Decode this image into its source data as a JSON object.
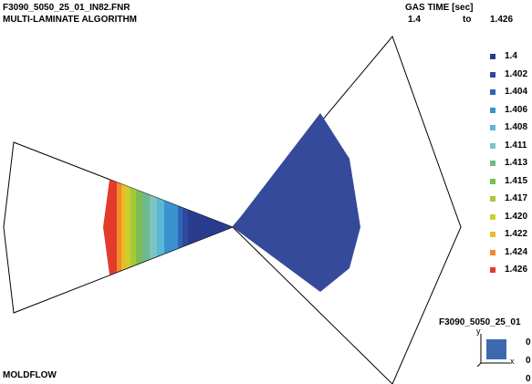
{
  "header": {
    "file_name": "F3090_5050_25_01_IN82.FNR",
    "algorithm": "MULTI-LAMINATE ALGORITHM",
    "result_title": "GAS TIME [sec]",
    "range_from": "1.4",
    "range_to_word": "to",
    "range_to": "1.426"
  },
  "legend": {
    "entries": [
      {
        "label": "1.4",
        "color": "#2b3c8f"
      },
      {
        "label": "1.402",
        "color": "#2c4a9e"
      },
      {
        "label": "1.404",
        "color": "#2f64b4"
      },
      {
        "label": "1.406",
        "color": "#3a92cf"
      },
      {
        "label": "1.408",
        "color": "#5ab7d5"
      },
      {
        "label": "1.411",
        "color": "#7cc4c2"
      },
      {
        "label": "1.413",
        "color": "#6cb98d"
      },
      {
        "label": "1.415",
        "color": "#7cbd55"
      },
      {
        "label": "1.417",
        "color": "#a4c93a"
      },
      {
        "label": "1.420",
        "color": "#c8cf2f"
      },
      {
        "label": "1.422",
        "color": "#ecbb25"
      },
      {
        "label": "1.424",
        "color": "#f08a2a"
      },
      {
        "label": "1.426",
        "color": "#e23b2e"
      }
    ]
  },
  "model": {
    "fill_color": "#354a9b",
    "outline_color": "#000000"
  },
  "footer": {
    "brand": "MOLDFLOW",
    "model_name": "F3090_5050_25_01",
    "triad_y": "y",
    "triad_x": "x",
    "triad_values": [
      "0",
      "0",
      "0"
    ]
  }
}
